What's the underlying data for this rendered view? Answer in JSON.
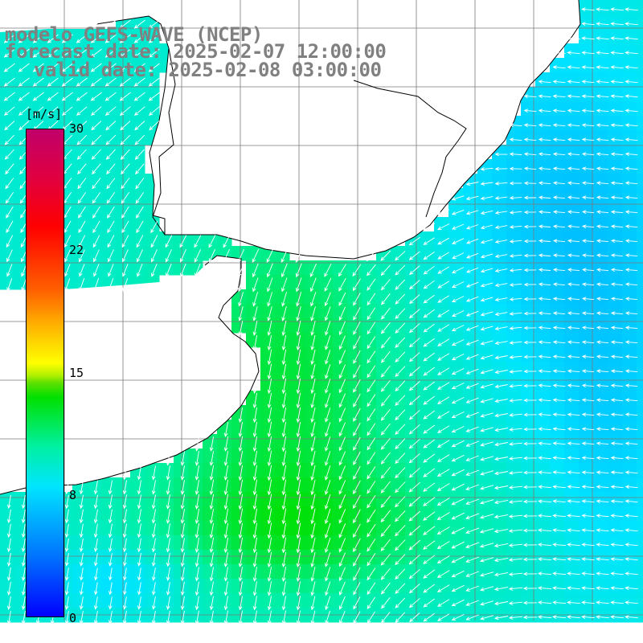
{
  "title": {
    "line1": "modelo GEFS-WAVE (NCEP)",
    "line2": "forecast date: 2025-02-07 12:00:00",
    "line3": "valid date: 2025-02-08 03:00:00"
  },
  "colorbar": {
    "unit": "[m/s]",
    "ticks": [
      "30",
      "22",
      "15",
      "8",
      "0"
    ],
    "range": [
      0,
      30
    ],
    "colors": [
      "#0000ff",
      "#0070ff",
      "#00e5ff",
      "#00e000",
      "#ffff00",
      "#ff6000",
      "#ff0000",
      "#c0006a"
    ]
  },
  "map": {
    "land_color": "#ffffff",
    "coastline_color": "#000000",
    "grid_color": "#888888",
    "vector_color": "#ffffff",
    "field_description": "wind speed shading with wind direction arrows",
    "peak_region": "south-west, about 12-13 m/s",
    "low_region": "north-east, about 6 m/s"
  }
}
